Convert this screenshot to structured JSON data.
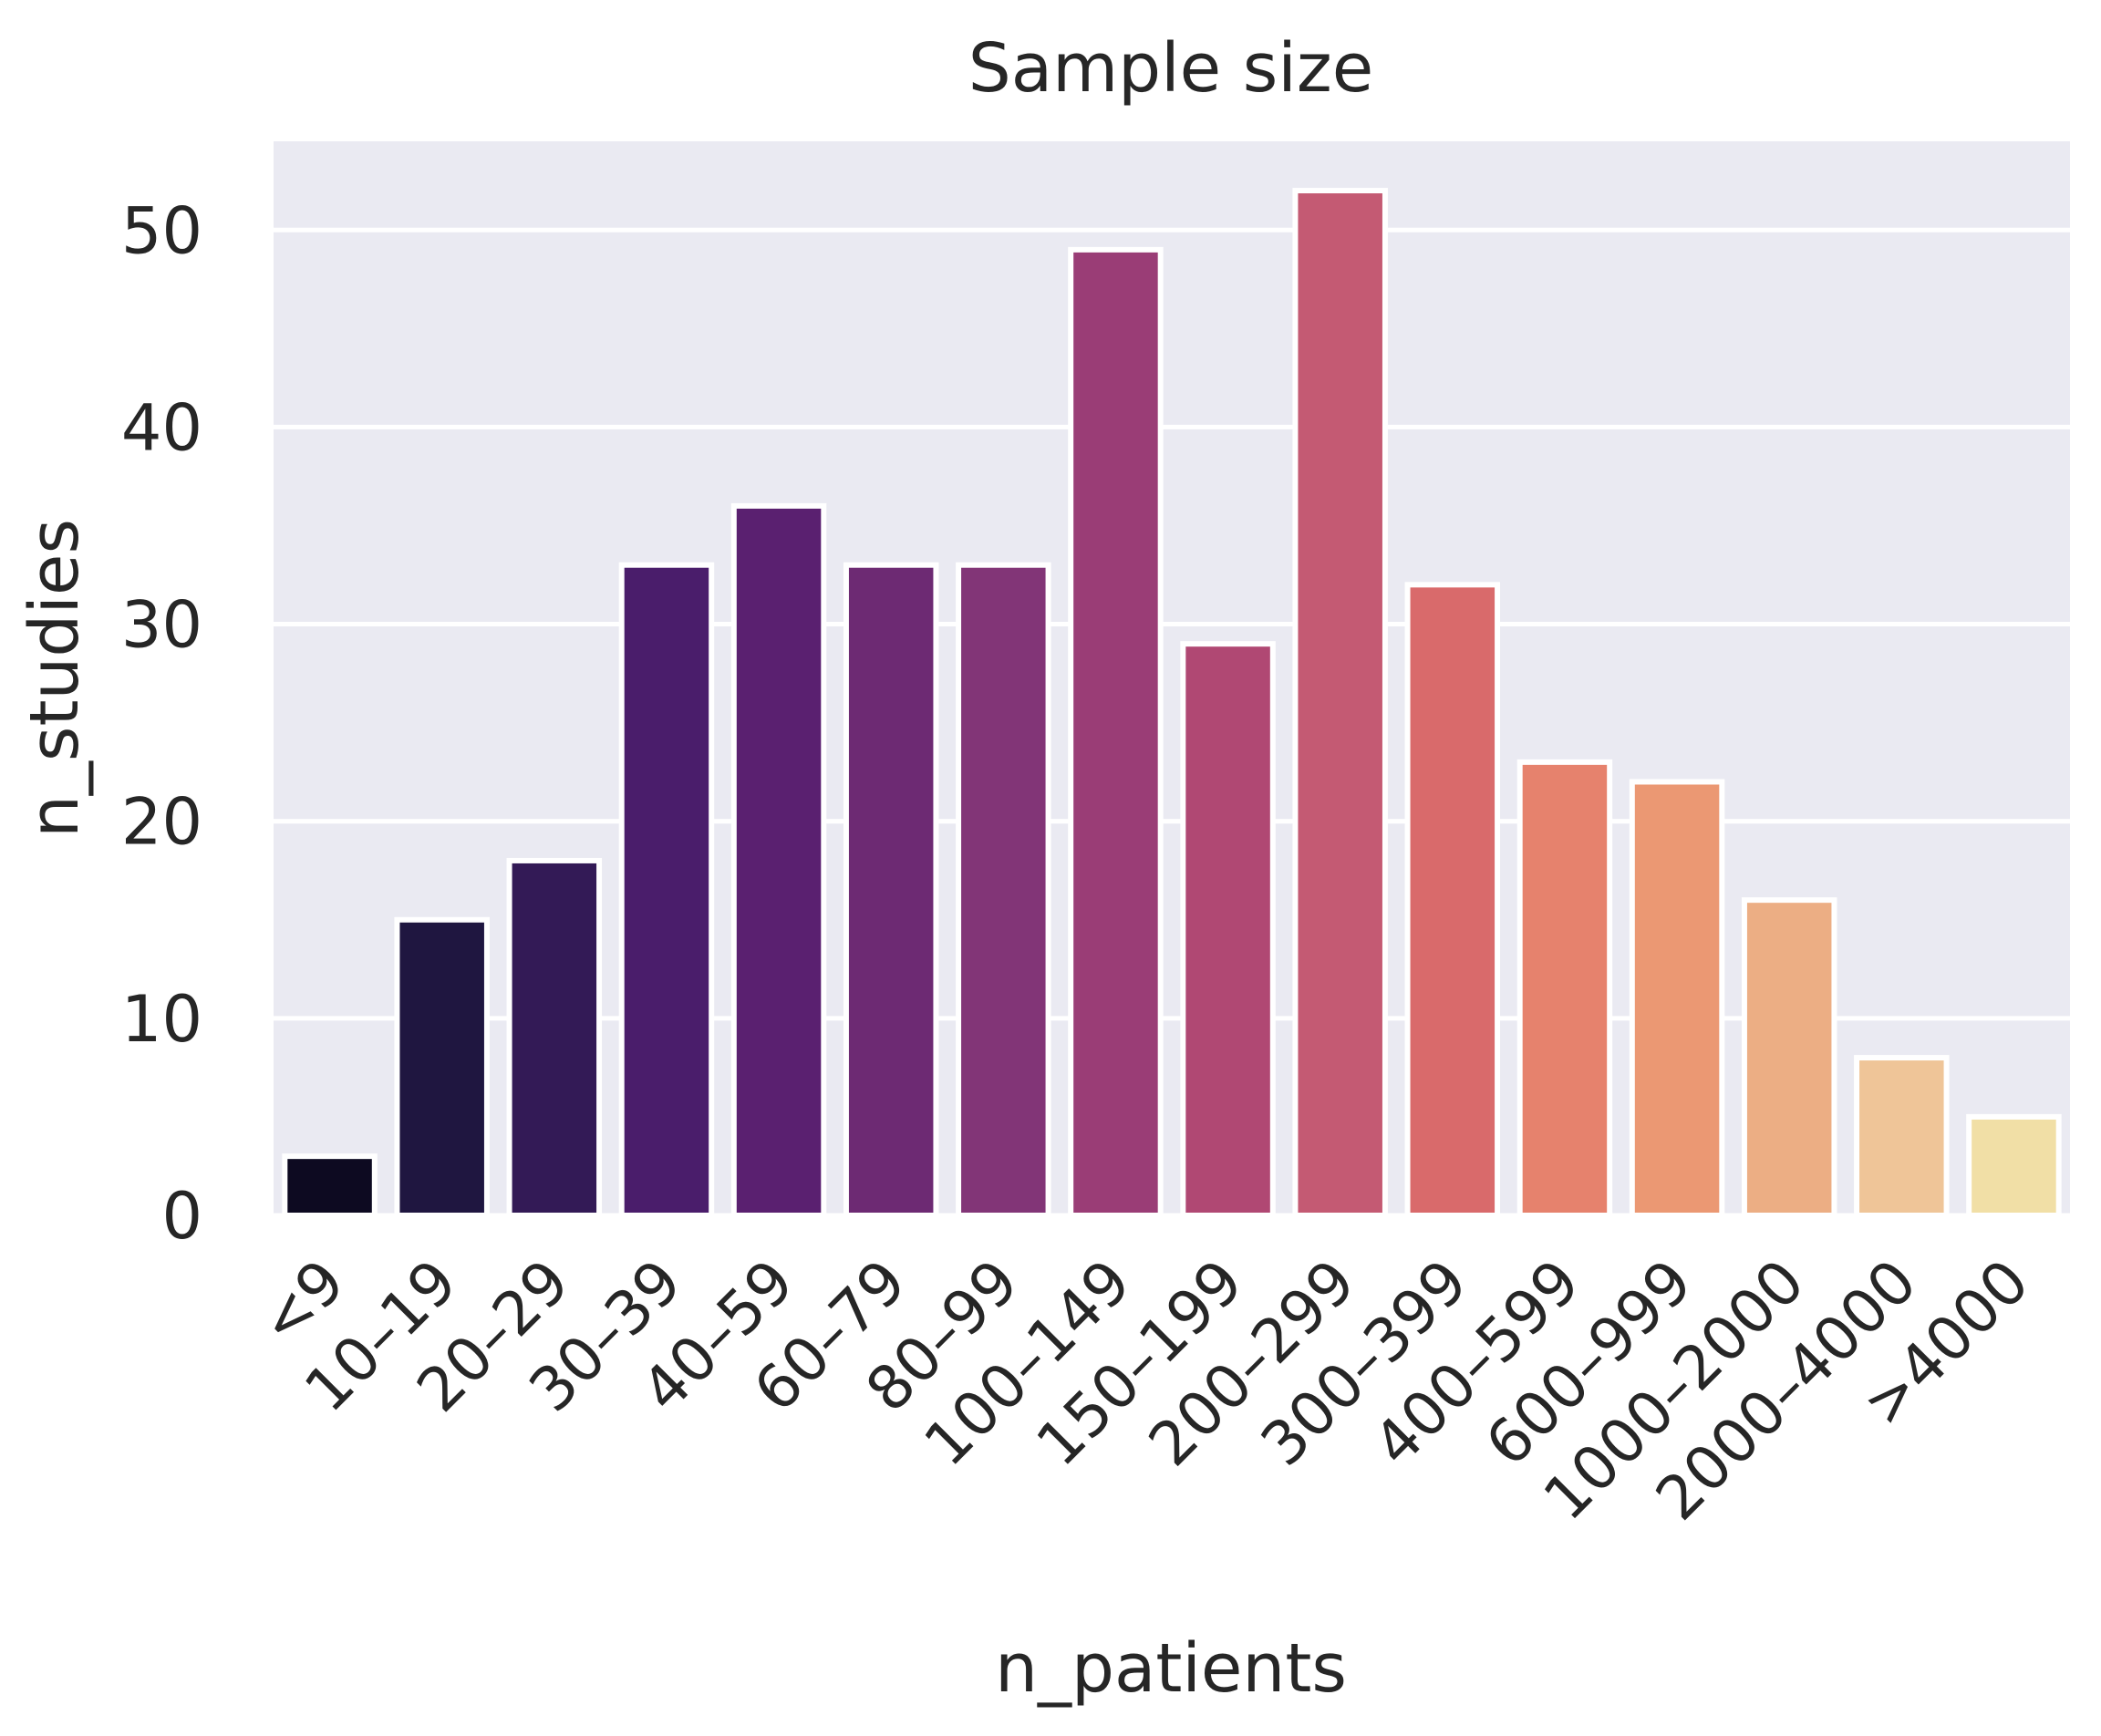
{
  "chart_data": {
    "type": "bar",
    "title": "Sample size",
    "xlabel": "n_patients",
    "ylabel": "n_studies",
    "categories": [
      "<9",
      "10–19",
      "20–29",
      "30–39",
      "40–59",
      "60–79",
      "80–99",
      "100–149",
      "150–199",
      "200–299",
      "300–399",
      "400–599",
      "600–999",
      "1000–2000",
      "2000–4000",
      ">4000"
    ],
    "values": [
      3,
      15,
      18,
      33,
      36,
      33,
      33,
      49,
      29,
      52,
      32,
      23,
      22,
      16,
      8,
      5
    ],
    "colors": [
      "#0d0a21",
      "#1f1640",
      "#331a56",
      "#4a1d6b",
      "#5a2070",
      "#6d2a73",
      "#823577",
      "#9a3d76",
      "#b04873",
      "#c45a73",
      "#d96a6b",
      "#e6826d",
      "#eb9873",
      "#ecae84",
      "#efc598",
      "#f1dfa6"
    ],
    "ylim": [
      0,
      54.5
    ],
    "yticks": [
      0,
      10,
      20,
      30,
      40,
      50
    ],
    "grid": true,
    "background": "#eaeaf2",
    "gridcolor": "#ffffff"
  }
}
